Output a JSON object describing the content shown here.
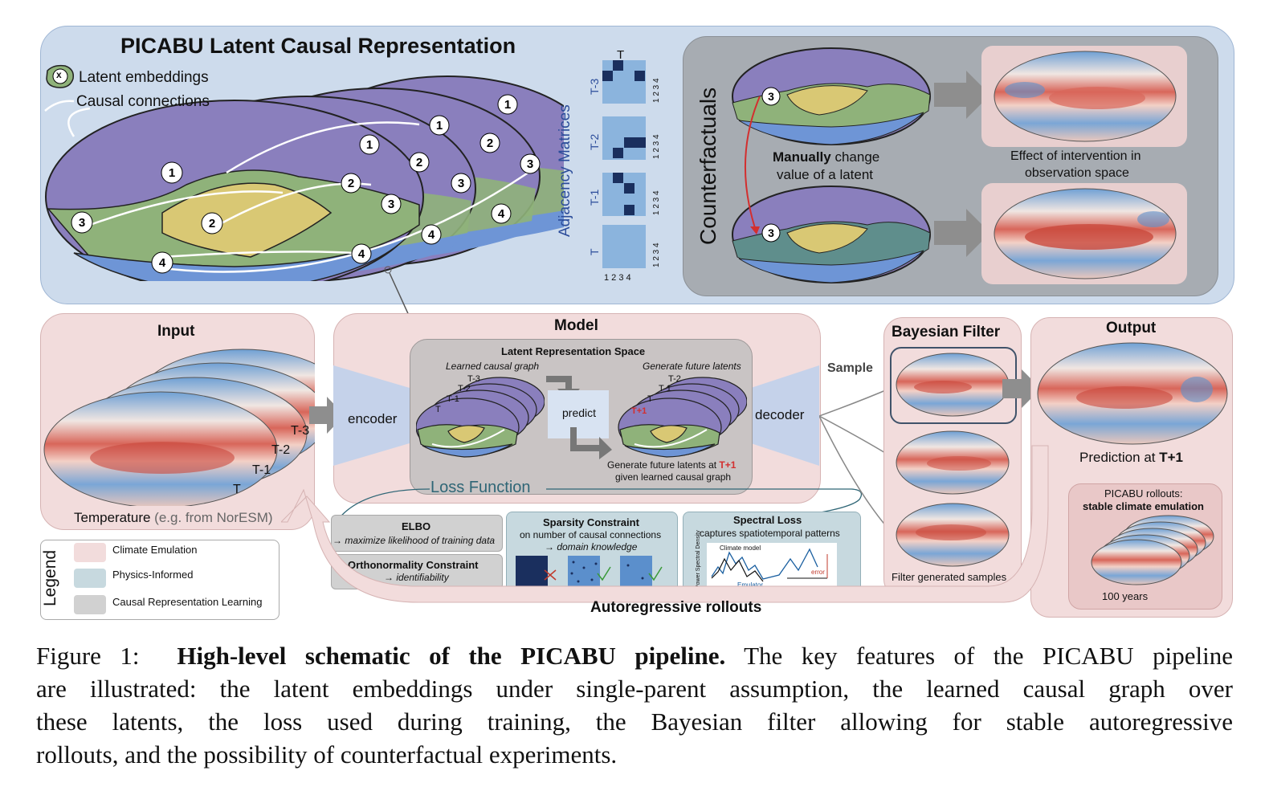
{
  "top": {
    "title": "PICABU Latent Causal Representation",
    "legend_latent": "Latent embeddings",
    "legend_causal": "Causal connections",
    "legend_node": "x",
    "node_numbers": [
      "1",
      "2",
      "3",
      "4"
    ],
    "adjacency_title": "Adjacency Matrices",
    "adjacency_top": "T",
    "adjacency_rows": [
      "T-3",
      "T-2",
      "T-1",
      "T"
    ],
    "adjacency_axis": "1 2 3 4",
    "counterfactuals": "Counterfactuals",
    "manual_bold": "Manually",
    "manual_rest": " change",
    "manual_line2": "value of a latent",
    "effect_line1": "Effect of intervention in",
    "effect_line2": "observation space"
  },
  "input": {
    "title": "Input",
    "time_labels": [
      "T-3",
      "T-2",
      "T-1",
      "T"
    ],
    "caption_main": "Temperature",
    "caption_grey": " (e.g. from NorESM)"
  },
  "model": {
    "title": "Model",
    "encoder": "encoder",
    "decoder": "decoder",
    "lrs_title": "Latent Representation Space",
    "learned_graph": "Learned causal graph",
    "gen_future": "Generate future latents",
    "predict": "predict",
    "stack_labels": [
      "T-3",
      "T-2",
      "T-1",
      "T"
    ],
    "future_stack_labels": [
      "T-2",
      "T-1",
      "T",
      "T+1"
    ],
    "gen_line1": "Generate future latents at ",
    "gen_t1": "T+1",
    "gen_line2": "given learned causal graph",
    "loss_function": "Loss Function"
  },
  "losses": {
    "elbo_title": "ELBO",
    "elbo_sub": "→ maximize likelihood of training data",
    "ortho_title": "Orthonormality Constraint",
    "ortho_sub": "→ identifiability",
    "sparsity_title": "Sparsity Constraint",
    "sparsity_sub1": "on number of causal connections",
    "sparsity_sub2": "→ domain knowledge",
    "spectral_title": "Spectral Loss",
    "spectral_sub": "captures spatiotemporal patterns",
    "psd_ylabel": "Power Spectral Density",
    "climate_model": "Climate model",
    "emulator": "Emulator",
    "error": "error"
  },
  "filter": {
    "sample": "Sample",
    "title": "Bayesian Filter",
    "caption": "Filter generated samples"
  },
  "output": {
    "title": "Output",
    "prediction": "Prediction at ",
    "prediction_bold": "T+1",
    "rollouts_line1": "PICABU rollouts:",
    "rollouts_line2": "stable climate emulation",
    "years": "100 years"
  },
  "autoregressive": "Autoregressive rollouts",
  "legend": {
    "title": "Legend",
    "items": [
      "Climate Emulation",
      "Physics-Informed",
      "Causal Representation Learning"
    ]
  },
  "colors": {
    "climate": "#f2dcdc",
    "physics": "#c7d9df",
    "causal": "#d1d1d1",
    "latent_purple": "#8a7fbd",
    "latent_green": "#8fb27a",
    "latent_yellow": "#d9c874",
    "latent_blue": "#6e95d6",
    "warm": "#c9483c",
    "cool": "#4f86c6"
  },
  "caption": {
    "label": "Figure 1:",
    "bold": "High-level schematic of the PICABU pipeline.",
    "line1_rest": " The key features of the PICABU pipeline",
    "line2": "are illustrated: the latent embeddings under single-parent assumption, the learned causal graph over",
    "line3": "these latents, the loss used during training, the Bayesian filter allowing for stable autoregressive",
    "line4": "rollouts, and the possibility of counterfactual experiments."
  }
}
